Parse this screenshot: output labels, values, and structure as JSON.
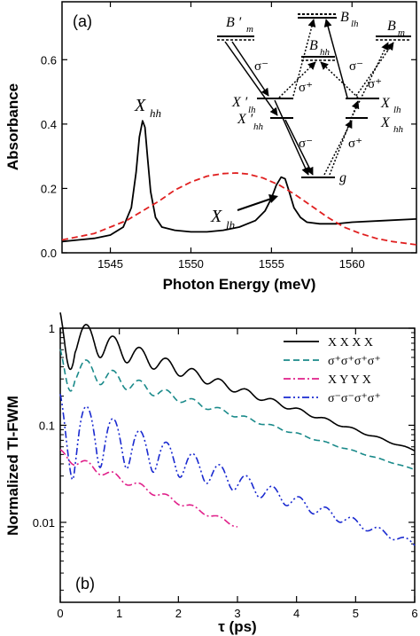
{
  "chart_data": [
    {
      "panel": "(a)",
      "type": "line",
      "xlabel": "Photon Energy (meV)",
      "ylabel": "Absorbance",
      "xlim": [
        1542,
        1564
      ],
      "ylim": [
        0,
        0.78
      ],
      "xticks": [
        1545,
        1550,
        1555,
        1560
      ],
      "yticks": [
        0.0,
        0.2,
        0.4,
        0.6
      ],
      "ytick_labels": [
        "0.0",
        "0.2",
        "0.4",
        "0.6"
      ],
      "series": [
        {
          "style": "solid",
          "color": "#000000",
          "x": [
            1542.0,
            1543.0,
            1544.0,
            1545.0,
            1545.8,
            1546.3,
            1546.6,
            1546.8,
            1547.0,
            1547.15,
            1547.3,
            1547.5,
            1547.8,
            1548.2,
            1549.0,
            1550.0,
            1551.0,
            1552.0,
            1553.0,
            1554.0,
            1554.6,
            1555.0,
            1555.3,
            1555.6,
            1555.85,
            1556.1,
            1556.4,
            1556.8,
            1557.2,
            1558.0,
            1559.0,
            1560.0,
            1562.0,
            1564.0
          ],
          "y": [
            0.035,
            0.04,
            0.045,
            0.055,
            0.08,
            0.14,
            0.25,
            0.36,
            0.41,
            0.39,
            0.3,
            0.19,
            0.11,
            0.08,
            0.07,
            0.065,
            0.065,
            0.07,
            0.08,
            0.1,
            0.13,
            0.17,
            0.21,
            0.235,
            0.23,
            0.19,
            0.14,
            0.11,
            0.095,
            0.09,
            0.09,
            0.095,
            0.1,
            0.105
          ]
        },
        {
          "style": "dashed",
          "color": "#e02020",
          "x": [
            1542.0,
            1543.0,
            1544.0,
            1545.0,
            1546.0,
            1547.0,
            1548.0,
            1549.0,
            1550.0,
            1551.0,
            1552.0,
            1552.8,
            1553.5,
            1554.5,
            1555.5,
            1556.5,
            1557.5,
            1558.5,
            1559.5,
            1560.5,
            1561.5,
            1562.5,
            1564.0
          ],
          "y": [
            0.04,
            0.05,
            0.06,
            0.08,
            0.1,
            0.13,
            0.16,
            0.195,
            0.22,
            0.238,
            0.246,
            0.248,
            0.245,
            0.232,
            0.21,
            0.18,
            0.145,
            0.11,
            0.08,
            0.06,
            0.045,
            0.035,
            0.025
          ]
        }
      ],
      "annotations": {
        "panel_label": "(a)",
        "x_hh_main": "X",
        "x_hh_sub": "hh",
        "x_lh_main": "X",
        "x_lh_sub": "lh"
      },
      "level_diagram": {
        "b_m_left": "B ′",
        "b_m_left_sub": "m",
        "b_lh": "B",
        "b_lh_sub": "lh",
        "b_m_right": "B",
        "b_m_right_sub": "m",
        "b_hh": "B",
        "b_hh_sub": "hh",
        "x_lh_prime": "X ′",
        "x_lh_prime_sub": "lh",
        "x_hh_prime": "X ′",
        "x_hh_prime_sub": "hh",
        "x_lh": "X",
        "x_lh_sub": "lh",
        "x_hh": "X",
        "x_hh_sub": "hh",
        "g": "g",
        "sigma_minus": "σ⁻",
        "sigma_plus": "σ⁺"
      }
    },
    {
      "panel": "(b)",
      "type": "line",
      "xlabel": "τ (ps)",
      "ylabel": "Normalized TI-FWM",
      "xlim": [
        0,
        6
      ],
      "ylim": [
        0.0015,
        1
      ],
      "log_y": true,
      "xticks": [
        0,
        1,
        2,
        3,
        4,
        5,
        6
      ],
      "yticks": [
        1,
        0.1,
        0.01
      ],
      "ytick_labels": [
        "1",
        "0.1",
        "0.01"
      ],
      "legend_position": "top-right",
      "series": [
        {
          "name": "X X X X",
          "style": "solid",
          "color": "#000000",
          "base": 1.0,
          "base_end": 0.055,
          "osc_amp": 0.45,
          "osc_period": 0.45,
          "osc_decay": 1.8,
          "t_end": 6.0,
          "dip": 0.17
        },
        {
          "name": "σ⁺σ⁺σ⁺σ⁺",
          "style": "dashed",
          "color": "#1a8a8a",
          "base": 0.45,
          "base_end": 0.035,
          "osc_amp": 0.35,
          "osc_period": 0.45,
          "osc_decay": 1.5,
          "t_end": 6.0,
          "dip": 0.18
        },
        {
          "name": "X Y Y X",
          "style": "dashdot",
          "color": "#e0208a",
          "base": 0.05,
          "base_end": 0.0017,
          "osc_amp": 0.12,
          "osc_period": 0.45,
          "osc_decay": 3.0,
          "t_end": 3.0,
          "dip": 0.05
        },
        {
          "name": "σ⁻σ⁻σ⁺σ⁺",
          "style": "dashdotdot",
          "color": "#1a2ad0",
          "base": 0.12,
          "base_end": 0.006,
          "osc_amp": 0.75,
          "osc_period": 0.45,
          "osc_decay": 2.5,
          "t_end": 6.0,
          "dip": 0.03
        }
      ],
      "annotations": {
        "panel_label": "(b)"
      }
    }
  ]
}
